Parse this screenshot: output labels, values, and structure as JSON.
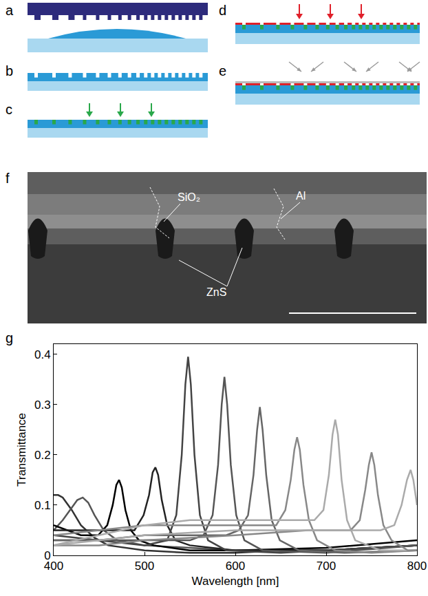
{
  "panels": [
    "a",
    "b",
    "c",
    "d",
    "e"
  ],
  "sem": {
    "letter": "f",
    "labels": [
      "SiO₂",
      "Al",
      "ZnS"
    ]
  },
  "chart_data": {
    "letter": "g",
    "type": "line",
    "x_label": "Wavelength [nm]",
    "y_label": "Transmittance",
    "xlim": [
      400,
      800
    ],
    "xticks": [
      400,
      500,
      600,
      700,
      800
    ],
    "ylim": [
      0,
      0.42
    ],
    "yticks": [
      0,
      0.1,
      0.2,
      0.3,
      0.4
    ],
    "grid": false,
    "series": [
      {
        "color": "#333333",
        "x": [
          400,
          405,
          410,
          420,
          430,
          445,
          460,
          480,
          500,
          550,
          600,
          650,
          700,
          750,
          800
        ],
        "values": [
          0.12,
          0.12,
          0.115,
          0.09,
          0.06,
          0.035,
          0.02,
          0.015,
          0.01,
          0.005,
          0.005,
          0.01,
          0.01,
          0.015,
          0.02
        ]
      },
      {
        "color": "#555555",
        "x": [
          400,
          410,
          420,
          426,
          432,
          438,
          445,
          455,
          470,
          500,
          550,
          600,
          700,
          800
        ],
        "values": [
          0.05,
          0.07,
          0.095,
          0.11,
          0.115,
          0.105,
          0.08,
          0.05,
          0.03,
          0.02,
          0.015,
          0.01,
          0.01,
          0.02
        ]
      },
      {
        "color": "#000000",
        "x": [
          400,
          430,
          449,
          459,
          465,
          469,
          472,
          475,
          479,
          485,
          494,
          510,
          550,
          600,
          700,
          800
        ],
        "values": [
          0.06,
          0.04,
          0.04,
          0.06,
          0.1,
          0.14,
          0.15,
          0.135,
          0.09,
          0.05,
          0.03,
          0.02,
          0.01,
          0.01,
          0.015,
          0.03
        ]
      },
      {
        "color": "#222222",
        "x": [
          400,
          450,
          489,
          499,
          505,
          509,
          512,
          515,
          519,
          525,
          534,
          550,
          600,
          700,
          800
        ],
        "values": [
          0.05,
          0.05,
          0.05,
          0.08,
          0.12,
          0.165,
          0.175,
          0.16,
          0.11,
          0.06,
          0.03,
          0.02,
          0.01,
          0.01,
          0.02
        ]
      },
      {
        "color": "#444444",
        "x": [
          400,
          450,
          500,
          525,
          535,
          541,
          545,
          548,
          551,
          555,
          561,
          570,
          590,
          650,
          700,
          750,
          800
        ],
        "values": [
          0.04,
          0.03,
          0.02,
          0.03,
          0.08,
          0.2,
          0.34,
          0.395,
          0.34,
          0.2,
          0.08,
          0.03,
          0.01,
          0.005,
          0.01,
          0.015,
          0.02
        ]
      },
      {
        "color": "#555555",
        "x": [
          400,
          450,
          500,
          550,
          565,
          575,
          581,
          585,
          588,
          591,
          595,
          601,
          610,
          630,
          700,
          800
        ],
        "values": [
          0.03,
          0.03,
          0.03,
          0.03,
          0.04,
          0.08,
          0.18,
          0.3,
          0.355,
          0.3,
          0.18,
          0.08,
          0.03,
          0.01,
          0.005,
          0.02
        ]
      },
      {
        "color": "#666666",
        "x": [
          400,
          450,
          500,
          550,
          590,
          604,
          614,
          620,
          624,
          627,
          630,
          634,
          640,
          649,
          670,
          720,
          800
        ],
        "values": [
          0.03,
          0.03,
          0.04,
          0.04,
          0.04,
          0.05,
          0.08,
          0.16,
          0.25,
          0.295,
          0.25,
          0.16,
          0.07,
          0.03,
          0.01,
          0.005,
          0.01
        ]
      },
      {
        "color": "#888888",
        "x": [
          400,
          450,
          500,
          550,
          600,
          645,
          655,
          661,
          665,
          668,
          671,
          675,
          681,
          690,
          710,
          750,
          800
        ],
        "values": [
          0.04,
          0.05,
          0.06,
          0.06,
          0.06,
          0.06,
          0.09,
          0.15,
          0.21,
          0.235,
          0.21,
          0.14,
          0.07,
          0.03,
          0.01,
          0.005,
          0.01
        ]
      },
      {
        "color": "#aaaaaa",
        "x": [
          400,
          450,
          500,
          550,
          600,
          650,
          687,
          697,
          703,
          707,
          710,
          713,
          717,
          723,
          732,
          760,
          800
        ],
        "values": [
          0.02,
          0.04,
          0.06,
          0.07,
          0.07,
          0.07,
          0.07,
          0.09,
          0.16,
          0.24,
          0.27,
          0.24,
          0.15,
          0.07,
          0.03,
          0.01,
          0.01
        ]
      },
      {
        "color": "#888888",
        "x": [
          400,
          450,
          500,
          600,
          680,
          727,
          737,
          743,
          747,
          750,
          753,
          757,
          763,
          772,
          790,
          800
        ],
        "values": [
          0.02,
          0.02,
          0.03,
          0.04,
          0.05,
          0.05,
          0.07,
          0.13,
          0.18,
          0.205,
          0.18,
          0.12,
          0.06,
          0.03,
          0.01,
          0.01
        ]
      },
      {
        "color": "#aaaaaa",
        "x": [
          400,
          450,
          500,
          600,
          700,
          760,
          775,
          783,
          789,
          793,
          796,
          800
        ],
        "values": [
          0.02,
          0.03,
          0.04,
          0.05,
          0.05,
          0.05,
          0.06,
          0.1,
          0.15,
          0.17,
          0.15,
          0.1
        ]
      }
    ]
  }
}
